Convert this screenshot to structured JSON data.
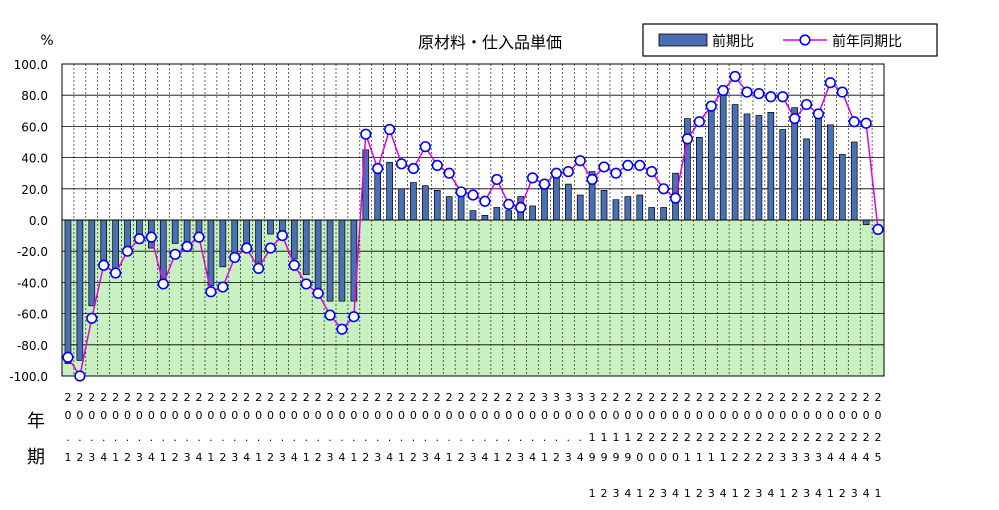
{
  "chart_data": {
    "type": "bar",
    "title": "原材料・仕入品単価",
    "ylabel": "%",
    "ylim": [
      -100,
      100
    ],
    "yticks": [
      "100.0",
      "80.0",
      "60.0",
      "40.0",
      "20.0",
      "0.0",
      "-20.0",
      "-40.0",
      "-60.0",
      "-80.0",
      "-100.0"
    ],
    "grid": true,
    "legend_position": "top-right",
    "row_labels": {
      "year": "年",
      "period": "期"
    },
    "colors": {
      "bar": "#4a6fb5",
      "line": "#e000e0",
      "marker_fill": "#ffffff",
      "marker_stroke": "#0000ff",
      "plot_negative": "#c8f0c0",
      "plot_positive": "#ffffff"
    },
    "categories": [
      "2002-1",
      "2002-2",
      "2002-3",
      "2002-4",
      "2001-1",
      "2001-2",
      "2001-3",
      "2001-4",
      "2002-1",
      "2002-2",
      "2002-3",
      "2002-4",
      "2003-1",
      "2003-2",
      "2003-3",
      "2003-4",
      "2004-1",
      "2004-2",
      "2004-3",
      "2004-4",
      "2005-1",
      "2005-2",
      "2005-3",
      "2005-4",
      "2006-1",
      "2006-2",
      "2006-3",
      "2006-4",
      "2007-1",
      "2007-2",
      "2007-3",
      "2007-4",
      "2008-1",
      "2008-2",
      "2008-3",
      "2008-4",
      "2009-1",
      "2009-2",
      "2009-3",
      "2009-4",
      "2010-1",
      "2010-2",
      "2010-3",
      "2010-4",
      "2019-1",
      "2019-2",
      "2019-3",
      "2019-4",
      "2020-1",
      "2020-2",
      "2020-3",
      "2020-4",
      "2021-1",
      "2021-2",
      "2021-3",
      "2021-4",
      "2022-1",
      "2022-2",
      "2022-3",
      "2022-4",
      "2023-1",
      "2023-2",
      "2023-3",
      "2023-4",
      "2024-1",
      "2024-2",
      "2024-3",
      "2024-4",
      "2025-1"
    ],
    "axis_rows": {
      "row1": [
        "2",
        "2",
        "2",
        "2",
        "2",
        "2",
        "2",
        "2",
        "2",
        "2",
        "2",
        "2",
        "2",
        "2",
        "2",
        "2",
        "2",
        "2",
        "2",
        "2",
        "2",
        "2",
        "2",
        "2",
        "2",
        "2",
        "2",
        "2",
        "2",
        "2",
        "2",
        "2",
        "2",
        "2",
        "2",
        "2",
        "2",
        "2",
        "2",
        "2",
        "3",
        "3",
        "3",
        "3",
        "3",
        "2",
        "2",
        "2",
        "2",
        "2",
        "2",
        "2",
        "2",
        "2",
        "2",
        "2",
        "2",
        "2",
        "2",
        "2",
        "2",
        "2",
        "2",
        "2",
        "2",
        "2",
        "2",
        "2",
        "2"
      ],
      "row2": [
        "0",
        "0",
        "0",
        "0",
        "0",
        "0",
        "0",
        "0",
        "0",
        "0",
        "0",
        "0",
        "0",
        "0",
        "0",
        "0",
        "0",
        "0",
        "0",
        "0",
        "0",
        "0",
        "0",
        "0",
        "0",
        "0",
        "0",
        "0",
        "0",
        "0",
        "0",
        "0",
        "0",
        "0",
        "0",
        "0",
        "0",
        "0",
        "0",
        "0",
        "0",
        "0",
        "0",
        "0",
        "0",
        "0",
        "0",
        "0",
        "0",
        "0",
        "0",
        "0",
        "0",
        "0",
        "0",
        "0",
        "0",
        "0",
        "0",
        "0",
        "0",
        "0",
        "0",
        "0",
        "0",
        "0",
        "0",
        "0",
        "0"
      ],
      "row3": [
        ".",
        ".",
        ".",
        ".",
        ".",
        ".",
        ".",
        ".",
        ".",
        ".",
        ".",
        ".",
        ".",
        ".",
        ".",
        ".",
        ".",
        ".",
        ".",
        ".",
        ".",
        ".",
        ".",
        ".",
        ".",
        ".",
        ".",
        ".",
        ".",
        ".",
        ".",
        ".",
        ".",
        ".",
        ".",
        ".",
        ".",
        ".",
        ".",
        ".",
        ".",
        ".",
        ".",
        ".",
        "1",
        "1",
        "1",
        "1",
        "2",
        "2",
        "2",
        "2",
        "2",
        "2",
        "2",
        "2",
        "2",
        "2",
        "2",
        "2",
        "2",
        "2",
        "2",
        "2",
        "2",
        "2",
        "2",
        "2",
        "2"
      ],
      "row4": [
        "1",
        "2",
        "3",
        "4",
        "1",
        "2",
        "3",
        "4",
        "1",
        "2",
        "3",
        "4",
        "1",
        "2",
        "3",
        "4",
        "1",
        "2",
        "3",
        "4",
        "1",
        "2",
        "3",
        "4",
        "1",
        "2",
        "3",
        "4",
        "1",
        "2",
        "3",
        "4",
        "1",
        "2",
        "3",
        "4",
        "1",
        "2",
        "3",
        "4",
        "1",
        "2",
        "3",
        "4",
        "9",
        "9",
        "9",
        "9",
        "0",
        "0",
        "0",
        "0",
        "1",
        "1",
        "1",
        "1",
        "2",
        "2",
        "2",
        "2",
        "3",
        "3",
        "3",
        "3",
        "4",
        "4",
        "4",
        "4",
        "5"
      ],
      "row5": [
        "",
        "",
        "",
        "",
        "",
        "",
        "",
        "",
        "",
        "",
        "",
        "",
        "",
        "",
        "",
        "",
        "",
        "",
        "",
        "",
        "",
        "",
        "",
        "",
        "",
        "",
        "",
        "",
        "",
        "",
        "",
        "",
        "",
        "",
        "",
        "",
        "",
        "",
        "",
        "",
        "",
        "",
        "",
        "",
        "1",
        "2",
        "3",
        "4",
        "1",
        "2",
        "3",
        "4",
        "1",
        "2",
        "3",
        "4",
        "1",
        "2",
        "3",
        "4",
        "1",
        "2",
        "3",
        "4",
        "1",
        "2",
        "3",
        "4",
        "1"
      ]
    },
    "series": [
      {
        "name": "前期比",
        "type": "bar",
        "values": [
          -92,
          -90,
          -55,
          -30,
          -32,
          -22,
          -15,
          -18,
          -38,
          -15,
          -14,
          -12,
          -42,
          -30,
          -25,
          -20,
          -27,
          -9,
          -12,
          -25,
          -35,
          -45,
          -52,
          -52,
          -52,
          45,
          35,
          37,
          20,
          24,
          22,
          19,
          15,
          16,
          6,
          3,
          8,
          6,
          15,
          9,
          23,
          28,
          23,
          16,
          31,
          19,
          13,
          15,
          16,
          8,
          8,
          30,
          65,
          53,
          72,
          83,
          74,
          68,
          67,
          69,
          58,
          72,
          52,
          71,
          61,
          42,
          50,
          -3,
          null
        ]
      },
      {
        "name": "前年同期比",
        "type": "line",
        "values": [
          -88,
          -100,
          -63,
          -29,
          -34,
          -20,
          -12,
          -11,
          -41,
          -22,
          -17,
          -11,
          -46,
          -43,
          -24,
          -18,
          -31,
          -18,
          -10,
          -29,
          -41,
          -47,
          -61,
          -70,
          -62,
          55,
          33,
          58,
          36,
          33,
          47,
          35,
          30,
          18,
          16,
          12,
          26,
          10,
          8,
          27,
          23,
          30,
          31,
          38,
          26,
          34,
          30,
          35,
          35,
          31,
          20,
          14,
          52,
          63,
          73,
          83,
          92,
          82,
          81,
          79,
          79,
          65,
          74,
          68,
          88,
          82,
          63,
          62,
          -6
        ]
      }
    ]
  }
}
